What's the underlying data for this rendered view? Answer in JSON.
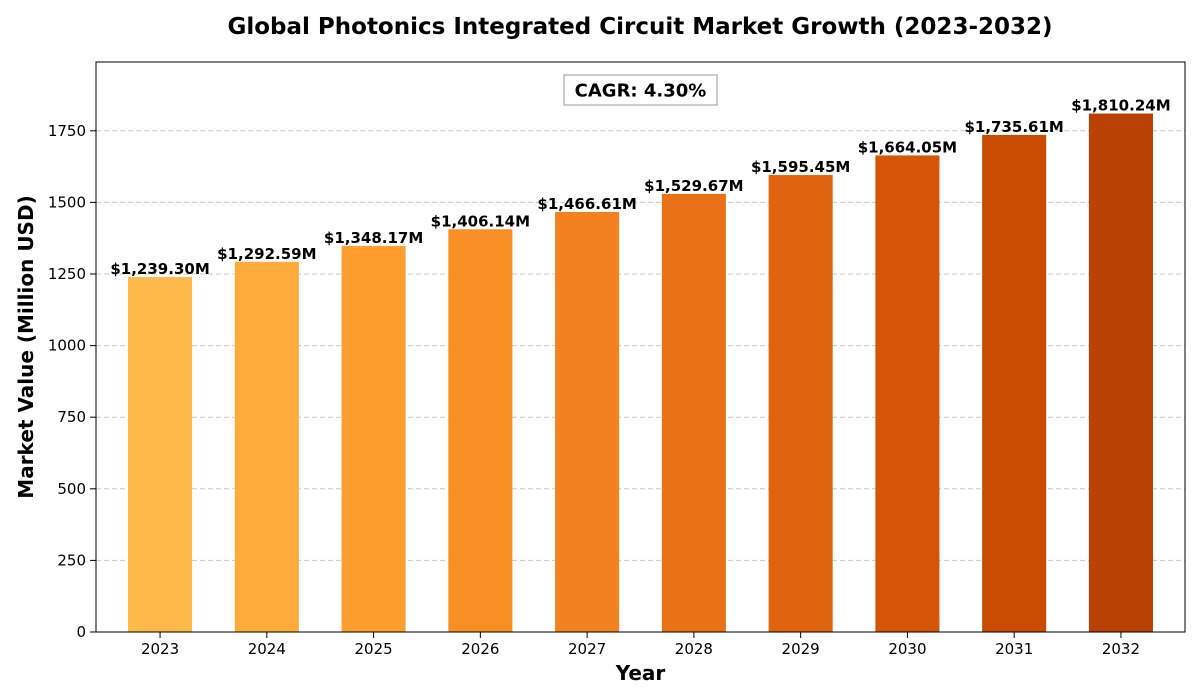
{
  "chart_data": {
    "type": "bar",
    "title": "Global Photonics Integrated Circuit Market Growth (2023-2032)",
    "xlabel": "Year",
    "ylabel": "Market Value (Million USD)",
    "categories": [
      "2023",
      "2024",
      "2025",
      "2026",
      "2027",
      "2028",
      "2029",
      "2030",
      "2031",
      "2032"
    ],
    "values": [
      1239.3,
      1292.59,
      1348.17,
      1406.14,
      1466.61,
      1529.67,
      1595.45,
      1664.05,
      1735.61,
      1810.24
    ],
    "data_labels": [
      "$1,239.30M",
      "$1,292.59M",
      "$1,348.17M",
      "$1,406.14M",
      "$1,466.61M",
      "$1,529.67M",
      "$1,595.45M",
      "$1,664.05M",
      "$1,735.61M",
      "$1,810.24M"
    ],
    "colors": [
      "#FFB84A",
      "#FFAB3C",
      "#FE9E2E",
      "#F88F24",
      "#F2811F",
      "#EA7216",
      "#E0630F",
      "#D45508",
      "#C94B02",
      "#B94103"
    ],
    "ylim": [
      0,
      1990.2
    ],
    "yticks": [
      0,
      250,
      500,
      750,
      1000,
      1250,
      1500,
      1750
    ],
    "grid": true,
    "annotation": "CAGR: 4.30%"
  }
}
